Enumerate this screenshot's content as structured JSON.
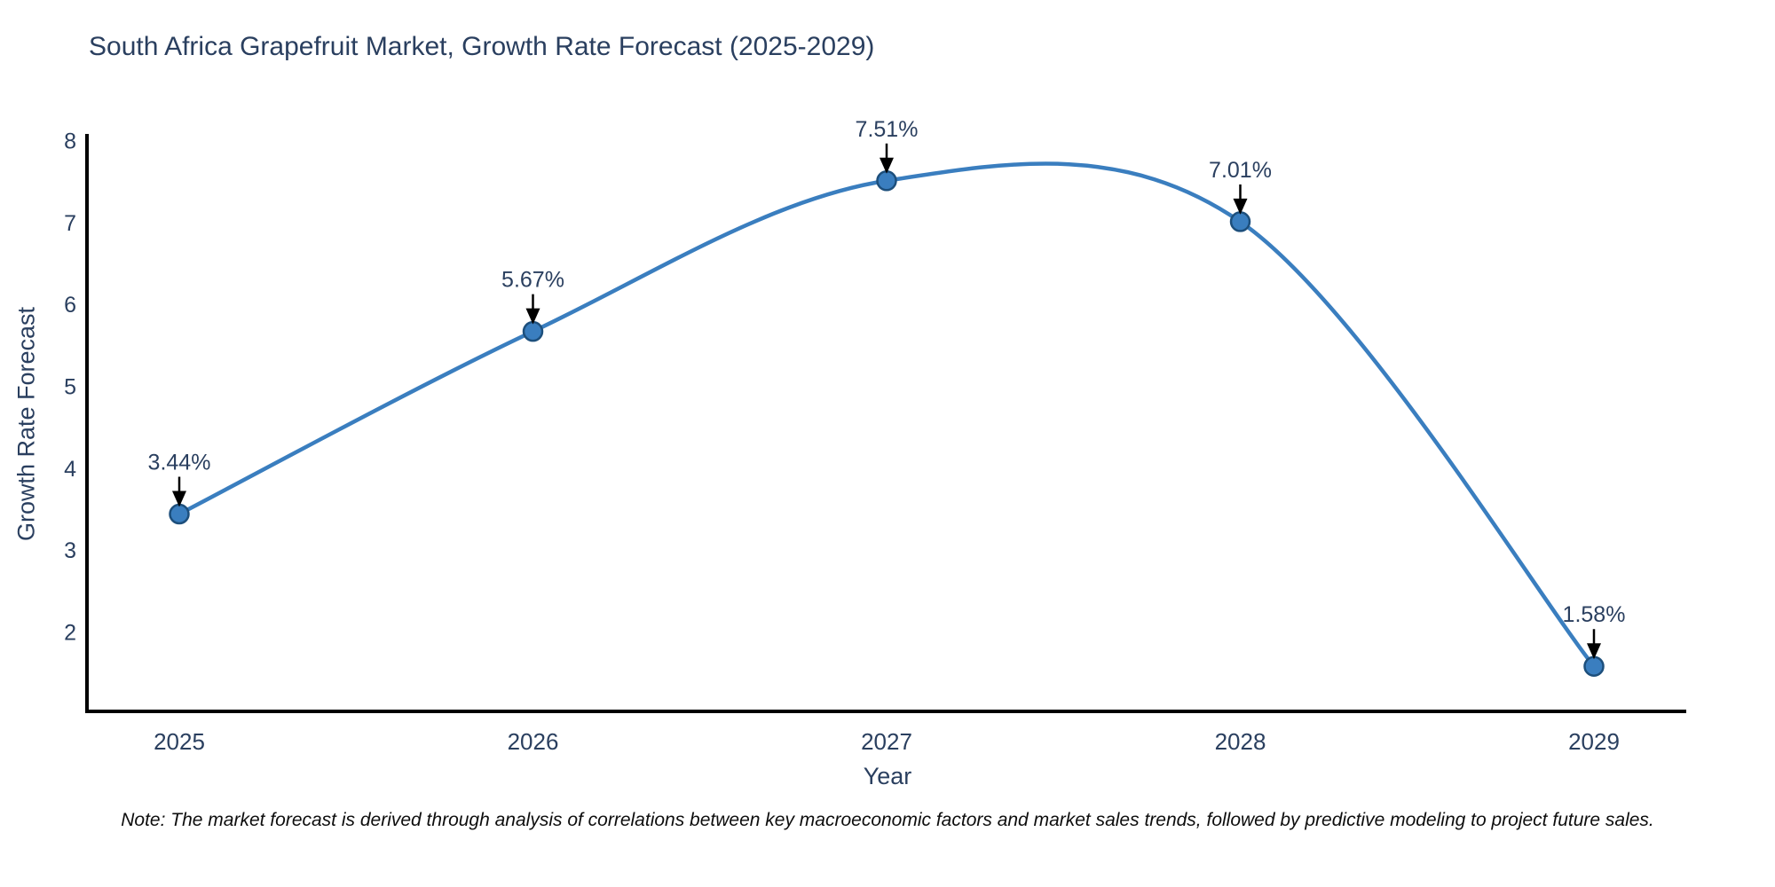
{
  "page": {
    "background": "#ffffff"
  },
  "chart_data": {
    "type": "line",
    "title": "South Africa Grapefruit Market, Growth Rate Forecast (2025-2029)",
    "xlabel": "Year",
    "ylabel": "Growth Rate Forecast",
    "categories": [
      "2025",
      "2026",
      "2027",
      "2028",
      "2029"
    ],
    "values": [
      3.44,
      5.67,
      7.51,
      7.01,
      1.58
    ],
    "point_labels": [
      "3.44%",
      "5.67%",
      "7.51%",
      "7.01%",
      "1.58%"
    ],
    "yticks": [
      2,
      3,
      4,
      5,
      6,
      7,
      8
    ],
    "ylim": [
      1.03,
      8.06
    ],
    "grid": false,
    "legend": "none",
    "line_shape": "spline",
    "note": "Note: The market forecast is derived through analysis of correlations between key macroeconomic factors and market sales trends, followed by predictive modeling to project future sales.",
    "colors": {
      "line": "#3a7ebf",
      "marker_fill": "#3a7ebf",
      "marker_edge": "#1d4f7c",
      "annotation_arrow": "#000000",
      "text": "#2a3f5f",
      "axis": "#000000",
      "note_text": "#0d0d0d"
    }
  }
}
